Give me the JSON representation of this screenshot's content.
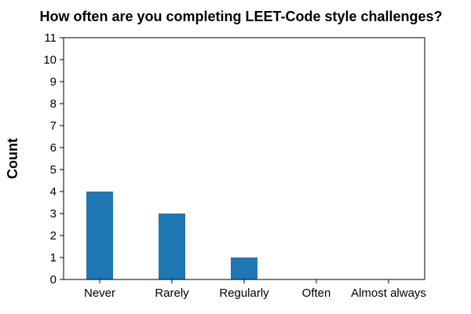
{
  "chart_data": {
    "type": "bar",
    "title": "How often are you completing LEET-Code style challenges?",
    "xlabel": "",
    "ylabel": "Count",
    "categories": [
      "Never",
      "Rarely",
      "Regularly",
      "Often",
      "Almost always"
    ],
    "values": [
      4,
      3,
      1,
      0,
      0
    ],
    "ylim": [
      0,
      11
    ],
    "yticks": [
      0,
      1,
      2,
      3,
      4,
      5,
      6,
      7,
      8,
      9,
      10,
      11
    ],
    "bar_color": "#1f77b4",
    "grid": false,
    "legend": "none"
  }
}
